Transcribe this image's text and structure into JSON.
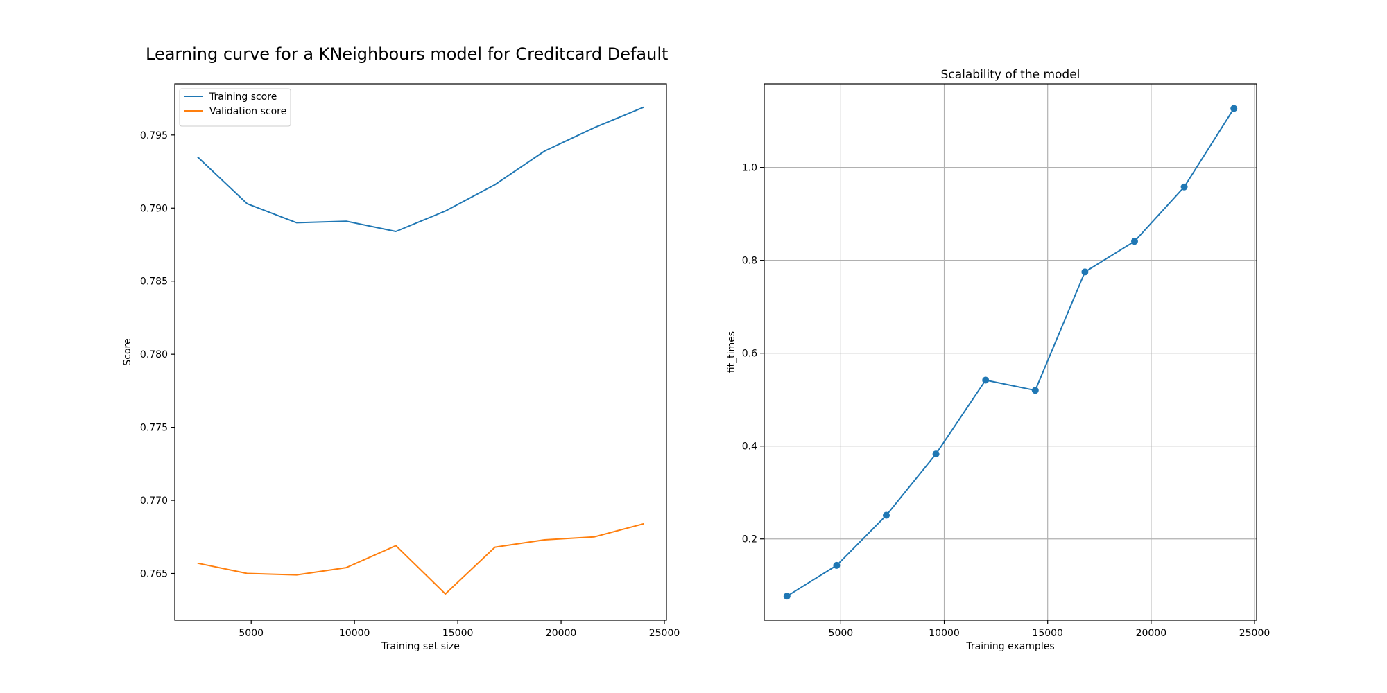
{
  "figure": {
    "title": "Learning curve for a KNeighbours model for Creditcard Default"
  },
  "colors": {
    "training": "#1f77b4",
    "validation": "#ff7f0e",
    "grid": "#b0b0b0",
    "axes": "#000000"
  },
  "chart_data": [
    {
      "type": "line",
      "title": "",
      "xlabel": "Training set size",
      "ylabel": "Score",
      "xlim": [
        1300,
        25100
      ],
      "ylim": [
        0.7618,
        0.7985
      ],
      "xticks": [
        5000,
        10000,
        15000,
        20000,
        25000
      ],
      "yticks": [
        0.765,
        0.77,
        0.775,
        0.78,
        0.785,
        0.79,
        0.795
      ],
      "ytick_decimals": 3,
      "grid": false,
      "markers": false,
      "legend": "top-left",
      "x": [
        2400,
        4800,
        7200,
        9600,
        12000,
        14400,
        16800,
        19200,
        21600,
        24000
      ],
      "series": [
        {
          "name": "Training score",
          "color": "#1f77b4",
          "values": [
            0.7935,
            0.7903,
            0.789,
            0.7891,
            0.7884,
            0.7898,
            0.7916,
            0.7939,
            0.7955,
            0.7969
          ]
        },
        {
          "name": "Validation score",
          "color": "#ff7f0e",
          "values": [
            0.7657,
            0.765,
            0.7649,
            0.7654,
            0.7669,
            0.7636,
            0.7668,
            0.7673,
            0.7675,
            0.7684
          ]
        }
      ]
    },
    {
      "type": "line",
      "title": "Scalability of the model",
      "xlabel": "Training examples",
      "ylabel": "fit_times",
      "xlim": [
        1300,
        25100
      ],
      "ylim": [
        0.025,
        1.18
      ],
      "xticks": [
        5000,
        10000,
        15000,
        20000,
        25000
      ],
      "yticks": [
        0.2,
        0.4,
        0.6,
        0.8,
        1.0
      ],
      "ytick_decimals": 1,
      "grid": true,
      "markers": true,
      "legend": "none",
      "x": [
        2400,
        4800,
        7200,
        9600,
        12000,
        14400,
        16800,
        19200,
        21600,
        24000
      ],
      "series": [
        {
          "name": "",
          "color": "#1f77b4",
          "values": [
            0.077,
            0.143,
            0.251,
            0.383,
            0.542,
            0.52,
            0.775,
            0.841,
            0.958,
            1.127
          ]
        }
      ]
    }
  ]
}
